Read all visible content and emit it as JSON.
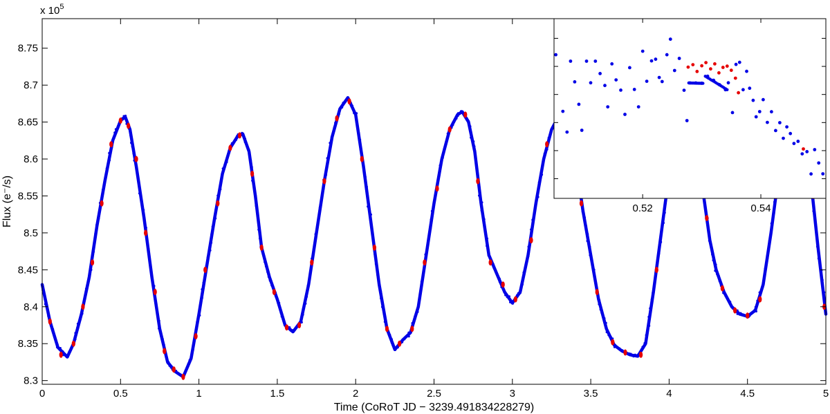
{
  "chart_data": [
    {
      "type": "scatter",
      "xlabel": "Time (CoRoT JD − 3239.491834228279)",
      "ylabel": "Flux (e⁻/s)",
      "multiplier_label": "x 10",
      "multiplier_exp": "5",
      "xlim": [
        0,
        5
      ],
      "ylim": [
        8.295,
        8.79
      ],
      "xticks": [
        {
          "value": 0,
          "label": "0"
        },
        {
          "value": 0.5,
          "label": "0.5"
        },
        {
          "value": 1,
          "label": "1"
        },
        {
          "value": 1.5,
          "label": "1.5"
        },
        {
          "value": 2,
          "label": "2"
        },
        {
          "value": 2.5,
          "label": "2.5"
        },
        {
          "value": 3,
          "label": "3"
        },
        {
          "value": 3.5,
          "label": "3.5"
        },
        {
          "value": 4,
          "label": "4"
        },
        {
          "value": 4.5,
          "label": "4.5"
        },
        {
          "value": 5,
          "label": "5"
        }
      ],
      "yticks": [
        {
          "value": 8.3,
          "label": "8.3"
        },
        {
          "value": 8.35,
          "label": "8.35"
        },
        {
          "value": 8.4,
          "label": "8.4"
        },
        {
          "value": 8.45,
          "label": "8.45"
        },
        {
          "value": 8.5,
          "label": "8.5"
        },
        {
          "value": 8.55,
          "label": "8.55"
        },
        {
          "value": 8.6,
          "label": "8.6"
        },
        {
          "value": 8.65,
          "label": "8.65"
        },
        {
          "value": 8.7,
          "label": "8.7"
        },
        {
          "value": 8.75,
          "label": "8.75"
        }
      ],
      "grid": false,
      "series": [
        {
          "color": "#0000e6",
          "curve": [
            [
              0.0,
              8.43
            ],
            [
              0.05,
              8.38
            ],
            [
              0.1,
              8.345
            ],
            [
              0.16,
              8.332
            ],
            [
              0.2,
              8.35
            ],
            [
              0.25,
              8.39
            ],
            [
              0.3,
              8.44
            ],
            [
              0.35,
              8.51
            ],
            [
              0.4,
              8.57
            ],
            [
              0.45,
              8.625
            ],
            [
              0.5,
              8.652
            ],
            [
              0.53,
              8.657
            ],
            [
              0.56,
              8.64
            ],
            [
              0.6,
              8.59
            ],
            [
              0.65,
              8.52
            ],
            [
              0.7,
              8.44
            ],
            [
              0.75,
              8.37
            ],
            [
              0.8,
              8.325
            ],
            [
              0.85,
              8.312
            ],
            [
              0.9,
              8.305
            ],
            [
              0.95,
              8.33
            ],
            [
              1.0,
              8.39
            ],
            [
              1.05,
              8.455
            ],
            [
              1.1,
              8.52
            ],
            [
              1.15,
              8.58
            ],
            [
              1.2,
              8.615
            ],
            [
              1.25,
              8.632
            ],
            [
              1.28,
              8.634
            ],
            [
              1.32,
              8.61
            ],
            [
              1.36,
              8.55
            ],
            [
              1.4,
              8.48
            ],
            [
              1.45,
              8.44
            ],
            [
              1.5,
              8.41
            ],
            [
              1.55,
              8.375
            ],
            [
              1.6,
              8.366
            ],
            [
              1.65,
              8.38
            ],
            [
              1.7,
              8.43
            ],
            [
              1.75,
              8.5
            ],
            [
              1.8,
              8.57
            ],
            [
              1.85,
              8.63
            ],
            [
              1.9,
              8.668
            ],
            [
              1.95,
              8.683
            ],
            [
              2.0,
              8.66
            ],
            [
              2.05,
              8.59
            ],
            [
              2.1,
              8.51
            ],
            [
              2.15,
              8.43
            ],
            [
              2.2,
              8.37
            ],
            [
              2.25,
              8.342
            ],
            [
              2.3,
              8.355
            ],
            [
              2.35,
              8.365
            ],
            [
              2.4,
              8.4
            ],
            [
              2.45,
              8.47
            ],
            [
              2.5,
              8.54
            ],
            [
              2.55,
              8.6
            ],
            [
              2.6,
              8.64
            ],
            [
              2.65,
              8.66
            ],
            [
              2.68,
              8.664
            ],
            [
              2.72,
              8.65
            ],
            [
              2.76,
              8.61
            ],
            [
              2.8,
              8.54
            ],
            [
              2.85,
              8.47
            ],
            [
              2.9,
              8.445
            ],
            [
              2.95,
              8.42
            ],
            [
              3.0,
              8.405
            ],
            [
              3.05,
              8.42
            ],
            [
              3.1,
              8.47
            ],
            [
              3.15,
              8.54
            ],
            [
              3.2,
              8.6
            ],
            [
              3.25,
              8.64
            ],
            [
              3.3,
              8.66
            ],
            [
              3.33,
              8.662
            ],
            [
              3.37,
              8.64
            ],
            [
              3.41,
              8.59
            ],
            [
              3.45,
              8.53
            ],
            [
              3.5,
              8.47
            ],
            [
              3.55,
              8.41
            ],
            [
              3.6,
              8.37
            ],
            [
              3.65,
              8.348
            ],
            [
              3.7,
              8.34
            ],
            [
              3.75,
              8.335
            ],
            [
              3.8,
              8.333
            ],
            [
              3.85,
              8.35
            ],
            [
              3.9,
              8.42
            ],
            [
              3.95,
              8.5
            ],
            [
              4.0,
              8.58
            ],
            [
              4.05,
              8.63
            ],
            [
              4.1,
              8.655
            ],
            [
              4.14,
              8.66
            ],
            [
              4.18,
              8.62
            ],
            [
              4.22,
              8.55
            ],
            [
              4.26,
              8.49
            ],
            [
              4.3,
              8.45
            ],
            [
              4.35,
              8.42
            ],
            [
              4.4,
              8.4
            ],
            [
              4.45,
              8.39
            ],
            [
              4.5,
              8.387
            ],
            [
              4.55,
              8.395
            ],
            [
              4.6,
              8.43
            ],
            [
              4.65,
              8.5
            ],
            [
              4.7,
              8.58
            ],
            [
              4.75,
              8.63
            ],
            [
              4.8,
              8.65
            ],
            [
              4.83,
              8.652
            ],
            [
              4.86,
              8.63
            ],
            [
              4.9,
              8.58
            ],
            [
              4.95,
              8.48
            ],
            [
              5.0,
              8.39
            ]
          ]
        },
        {
          "color": "#e60000",
          "points": [
            [
              0.05,
              8.38
            ],
            [
              0.12,
              8.335
            ],
            [
              0.2,
              8.35
            ],
            [
              0.26,
              8.4
            ],
            [
              0.32,
              8.46
            ],
            [
              0.38,
              8.54
            ],
            [
              0.44,
              8.62
            ],
            [
              0.5,
              8.652
            ],
            [
              0.55,
              8.645
            ],
            [
              0.6,
              8.6
            ],
            [
              0.66,
              8.5
            ],
            [
              0.72,
              8.42
            ],
            [
              0.78,
              8.34
            ],
            [
              0.84,
              8.315
            ],
            [
              0.9,
              8.305
            ],
            [
              0.98,
              8.36
            ],
            [
              1.04,
              8.45
            ],
            [
              1.12,
              8.54
            ],
            [
              1.2,
              8.615
            ],
            [
              1.26,
              8.632
            ],
            [
              1.34,
              8.58
            ],
            [
              1.4,
              8.48
            ],
            [
              1.48,
              8.42
            ],
            [
              1.56,
              8.372
            ],
            [
              1.64,
              8.375
            ],
            [
              1.72,
              8.46
            ],
            [
              1.8,
              8.57
            ],
            [
              1.88,
              8.655
            ],
            [
              1.96,
              8.678
            ],
            [
              2.04,
              8.6
            ],
            [
              2.12,
              8.48
            ],
            [
              2.2,
              8.37
            ],
            [
              2.28,
              8.35
            ],
            [
              2.36,
              8.37
            ],
            [
              2.44,
              8.46
            ],
            [
              2.52,
              8.56
            ],
            [
              2.6,
              8.64
            ],
            [
              2.7,
              8.66
            ],
            [
              2.78,
              8.57
            ],
            [
              2.86,
              8.46
            ],
            [
              2.94,
              8.43
            ],
            [
              3.02,
              8.41
            ],
            [
              3.12,
              8.49
            ],
            [
              3.22,
              8.62
            ],
            [
              3.35,
              8.658
            ],
            [
              3.44,
              8.54
            ],
            [
              3.54,
              8.42
            ],
            [
              3.64,
              8.352
            ],
            [
              3.72,
              8.338
            ],
            [
              3.82,
              8.335
            ],
            [
              3.92,
              8.45
            ],
            [
              4.02,
              8.6
            ],
            [
              4.12,
              8.66
            ],
            [
              4.24,
              8.52
            ],
            [
              4.34,
              8.425
            ],
            [
              4.42,
              8.395
            ],
            [
              4.5,
              8.388
            ],
            [
              4.58,
              8.41
            ],
            [
              4.68,
              8.55
            ],
            [
              4.8,
              8.648
            ],
            [
              4.92,
              8.55
            ],
            [
              4.99,
              8.4
            ]
          ]
        }
      ]
    },
    {
      "type": "scatter",
      "xlim": [
        0.505,
        0.551
      ],
      "ylim": [
        8.546,
        8.674
      ],
      "xticks": [
        {
          "value": 0.52,
          "label": "0.52"
        },
        {
          "value": 0.54,
          "label": "0.54"
        }
      ],
      "ytick_values": [
        8.56,
        8.58,
        8.6,
        8.62,
        8.64,
        8.66
      ],
      "series": [
        {
          "color": "#0000e6",
          "points": [
            [
              0.5053,
              8.6483
            ],
            [
              0.5065,
              8.608
            ],
            [
              0.5072,
              8.5932
            ],
            [
              0.5078,
              8.6437
            ],
            [
              0.5085,
              8.629
            ],
            [
              0.5092,
              8.613
            ],
            [
              0.5097,
              8.5945
            ],
            [
              0.5105,
              8.6437
            ],
            [
              0.5112,
              8.6283
            ],
            [
              0.512,
              8.6437
            ],
            [
              0.5128,
              8.6349
            ],
            [
              0.5136,
              8.6264
            ],
            [
              0.5141,
              8.6112
            ],
            [
              0.5148,
              8.6418
            ],
            [
              0.5155,
              8.6304
            ],
            [
              0.5163,
              8.6231
            ],
            [
              0.517,
              8.6058
            ],
            [
              0.5178,
              8.6391
            ],
            [
              0.5186,
              8.6236
            ],
            [
              0.5193,
              8.6112
            ],
            [
              0.52,
              8.6508
            ],
            [
              0.5207,
              8.6294
            ],
            [
              0.5215,
              8.6439
            ],
            [
              0.5222,
              8.6451
            ],
            [
              0.5228,
              8.6321
            ],
            [
              0.5233,
              8.6292
            ],
            [
              0.5241,
              8.6483
            ],
            [
              0.5247,
              8.6594
            ],
            [
              0.5254,
              8.6371
            ],
            [
              0.5262,
              8.6457
            ],
            [
              0.527,
              8.623
            ],
            [
              0.5275,
              8.6014
            ],
            [
              0.528,
              8.6282
            ],
            [
              0.529,
              8.6282
            ],
            [
              0.53,
              8.628
            ],
            [
              0.531,
              8.633
            ],
            [
              0.532,
              8.6301
            ],
            [
              0.533,
              8.627
            ],
            [
              0.534,
              8.6234
            ],
            [
              0.5345,
              8.6283
            ],
            [
              0.5352,
              8.6071
            ],
            [
              0.5358,
              8.6414
            ],
            [
              0.5364,
              8.6429
            ],
            [
              0.537,
              8.6234
            ],
            [
              0.5376,
              8.6365
            ],
            [
              0.5381,
              8.6244
            ],
            [
              0.5387,
              8.6158
            ],
            [
              0.5392,
              8.6041
            ],
            [
              0.5398,
              8.6078
            ],
            [
              0.5404,
              8.6163
            ],
            [
              0.5411,
              8.6001
            ],
            [
              0.5418,
              8.6077
            ],
            [
              0.5425,
              8.5943
            ],
            [
              0.5432,
              8.5999
            ],
            [
              0.5438,
              8.5888
            ],
            [
              0.5444,
              8.5969
            ],
            [
              0.545,
              8.5922
            ],
            [
              0.5456,
              8.5851
            ],
            [
              0.5463,
              8.5866
            ],
            [
              0.547,
              8.5777
            ],
            [
              0.5478,
              8.5793
            ],
            [
              0.5485,
              8.5634
            ],
            [
              0.5491,
              8.5807
            ],
            [
              0.5498,
              8.5712
            ],
            [
              0.5505,
              8.5635
            ],
            [
              0.551,
              8.5583
            ]
          ]
        },
        {
          "color": "#e60000",
          "points": [
            [
              0.5277,
              8.6395
            ],
            [
              0.5285,
              8.6412
            ],
            [
              0.5292,
              8.6364
            ],
            [
              0.53,
              8.6404
            ],
            [
              0.5307,
              8.6427
            ],
            [
              0.5315,
              8.6382
            ],
            [
              0.5322,
              8.6418
            ],
            [
              0.5329,
              8.6354
            ],
            [
              0.5336,
              8.6393
            ],
            [
              0.5343,
              8.6402
            ],
            [
              0.535,
              8.6372
            ],
            [
              0.5357,
              8.6316
            ],
            [
              0.5362,
              8.6212
            ],
            [
              0.5472,
              8.5812
            ]
          ]
        }
      ]
    }
  ]
}
